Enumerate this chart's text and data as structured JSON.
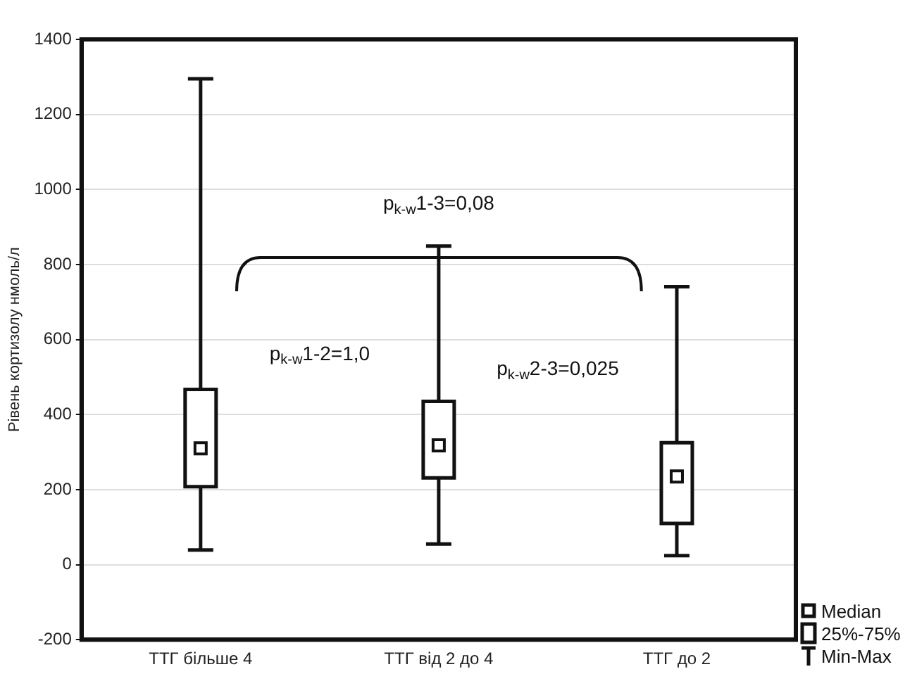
{
  "chart_data": {
    "type": "box",
    "ylabel": "Рівень кортизолу нмоль/л",
    "categories": [
      "ТТГ більше 4",
      "ТТГ від 2 до 4",
      "ТТГ до 2"
    ],
    "boxes": [
      {
        "low": 39,
        "q1": 208,
        "median": 310,
        "q3": 467,
        "high": 1295
      },
      {
        "low": 55,
        "q1": 231,
        "median": 318,
        "q3": 435,
        "high": 849
      },
      {
        "low": 24,
        "q1": 110,
        "median": 235,
        "q3": 325,
        "high": 741
      }
    ],
    "ylim": [
      -200,
      1400
    ],
    "yticks": [
      -200,
      0,
      200,
      400,
      600,
      800,
      1000,
      1200,
      1400
    ],
    "grid": "y",
    "annotations": [
      "p$_{k-w}$1-3=0,08",
      "p$_{k-w}$1-2=1,0",
      "p$_{k-w}$2-3=0,025",
      "Median",
      "25%-75%",
      "Min-Max"
    ]
  }
}
